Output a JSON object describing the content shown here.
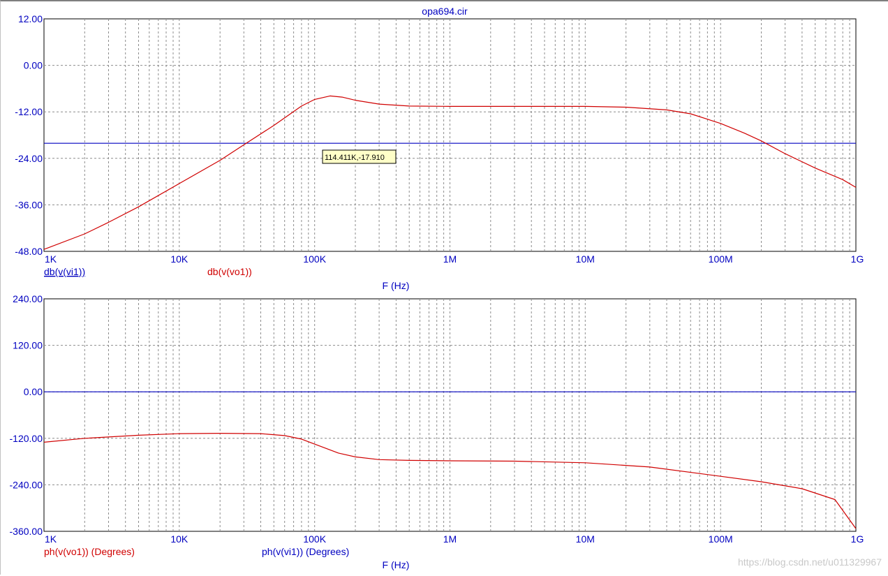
{
  "window_title": "opa694.cir",
  "watermark": "https://blog.csdn.net/u011329967",
  "chart_data": [
    {
      "type": "line",
      "xscale": "log",
      "xlim": [
        1000,
        1000000000
      ],
      "ylim": [
        -48,
        12
      ],
      "xlabel": "F (Hz)",
      "x_ticks": [
        "1K",
        "10K",
        "100K",
        "1M",
        "10M",
        "100M",
        "1G"
      ],
      "y_ticks": [
        "12.00",
        "0.00",
        "-12.00",
        "-24.00",
        "-36.00",
        "-48.00"
      ],
      "grid": true,
      "series": [
        {
          "name": "db(v(vi1))",
          "color": "#0000c0",
          "x": [
            1000,
            1000000000
          ],
          "y": [
            -20.1,
            -20.1
          ]
        },
        {
          "name": "db(v(vo1))",
          "color": "#d00000",
          "x": [
            1000,
            2000,
            3000,
            5000,
            10000,
            20000,
            30000,
            50000,
            80000,
            100000,
            130000,
            160000,
            200000,
            300000,
            500000,
            1000000,
            3000000,
            10000000,
            20000000,
            40000000,
            60000000,
            100000000,
            150000000,
            200000000,
            300000000,
            500000000,
            800000000,
            1000000000
          ],
          "y": [
            -47.5,
            -43.5,
            -40.5,
            -36.5,
            -30.5,
            -24.5,
            -20.5,
            -15.5,
            -10.5,
            -8.8,
            -7.9,
            -8.2,
            -9.0,
            -10.0,
            -10.5,
            -10.6,
            -10.6,
            -10.6,
            -10.8,
            -11.5,
            -12.5,
            -15.0,
            -17.5,
            -19.5,
            -22.8,
            -26.5,
            -29.5,
            -31.5
          ]
        }
      ],
      "cursor_label": "114.411K,-17.910"
    },
    {
      "type": "line",
      "xscale": "log",
      "xlim": [
        1000,
        1000000000
      ],
      "ylim": [
        -360,
        240
      ],
      "xlabel": "F (Hz)",
      "x_ticks": [
        "1K",
        "10K",
        "100K",
        "1M",
        "10M",
        "100M",
        "1G"
      ],
      "y_ticks": [
        "240.00",
        "120.00",
        "0.00",
        "-120.00",
        "-240.00",
        "-360.00"
      ],
      "grid": true,
      "series": [
        {
          "name": "ph(v(vo1)) (Degrees)",
          "color": "#d00000",
          "x": [
            1000,
            2000,
            5000,
            10000,
            20000,
            40000,
            60000,
            80000,
            100000,
            150000,
            200000,
            300000,
            500000,
            1000000,
            3000000,
            10000000,
            30000000,
            100000000,
            200000000,
            400000000,
            700000000,
            1000000000
          ],
          "y": [
            -130,
            -120,
            -112,
            -108,
            -107,
            -108,
            -113,
            -122,
            -135,
            -158,
            -168,
            -175,
            -177,
            -178,
            -179,
            -183,
            -194,
            -218,
            -232,
            -250,
            -278,
            -353
          ]
        },
        {
          "name": "ph(v(vi1)) (Degrees)",
          "color": "#0000c0",
          "x": [
            1000,
            1000000000
          ],
          "y": [
            0,
            0
          ]
        }
      ]
    }
  ]
}
